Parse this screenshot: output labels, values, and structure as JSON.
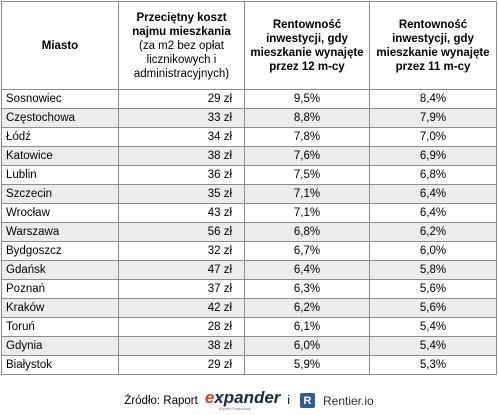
{
  "headers": {
    "city": "Miasto",
    "cost_main": "Przeciętny koszt najmu mieszkania",
    "cost_sub": "(za m2 bez opłat licznikowych i administracyjnych)",
    "yield12": "Rentowność inwestycji, gdy mieszkanie wynajęte przez 12 m-cy",
    "yield11": "Rentowność inwestycji, gdy mieszkanie wynajęte przez 11 m-cy"
  },
  "rows": [
    {
      "city": "Sosnowiec",
      "cost": "29 zł",
      "y12": "9,5%",
      "y11": "8,4%"
    },
    {
      "city": "Częstochowa",
      "cost": "33 zł",
      "y12": "8,8%",
      "y11": "7,9%"
    },
    {
      "city": "Łódź",
      "cost": "34 zł",
      "y12": "7,8%",
      "y11": "7,0%"
    },
    {
      "city": "Katowice",
      "cost": "38 zł",
      "y12": "7,6%",
      "y11": "6,9%"
    },
    {
      "city": "Lublin",
      "cost": "36 zł",
      "y12": "7,5%",
      "y11": "6,8%"
    },
    {
      "city": "Szczecin",
      "cost": "35 zł",
      "y12": "7,1%",
      "y11": "6,4%"
    },
    {
      "city": "Wrocław",
      "cost": "43 zł",
      "y12": "7,1%",
      "y11": "6,4%"
    },
    {
      "city": "Warszawa",
      "cost": "56 zł",
      "y12": "6,8%",
      "y11": "6,2%"
    },
    {
      "city": "Bydgoszcz",
      "cost": "32 zł",
      "y12": "6,7%",
      "y11": "6,0%"
    },
    {
      "city": "Gdańsk",
      "cost": "47 zł",
      "y12": "6,4%",
      "y11": "5,8%"
    },
    {
      "city": "Poznań",
      "cost": "37 zł",
      "y12": "6,3%",
      "y11": "5,6%"
    },
    {
      "city": "Kraków",
      "cost": "42 zł",
      "y12": "6,2%",
      "y11": "5,6%"
    },
    {
      "city": "Toruń",
      "cost": "28 zł",
      "y12": "6,1%",
      "y11": "5,4%"
    },
    {
      "city": "Gdynia",
      "cost": "38 zł",
      "y12": "6,0%",
      "y11": "5,4%"
    },
    {
      "city": "Białystok",
      "cost": "29 zł",
      "y12": "5,9%",
      "y11": "5,3%"
    }
  ],
  "footer": {
    "source_label": "Źródło: Raport",
    "expander_e": "e",
    "expander_rest": "xpander",
    "expander_tagline": "Expert Finansowy",
    "and": "i",
    "rentier_icon": "R",
    "rentier_name": "Rentier.io"
  },
  "colors": {
    "border": "#8c8c8c",
    "stripe": "#ececec",
    "expander_accent": "#e63b1f",
    "rentier_blue": "#2f5b9a"
  }
}
